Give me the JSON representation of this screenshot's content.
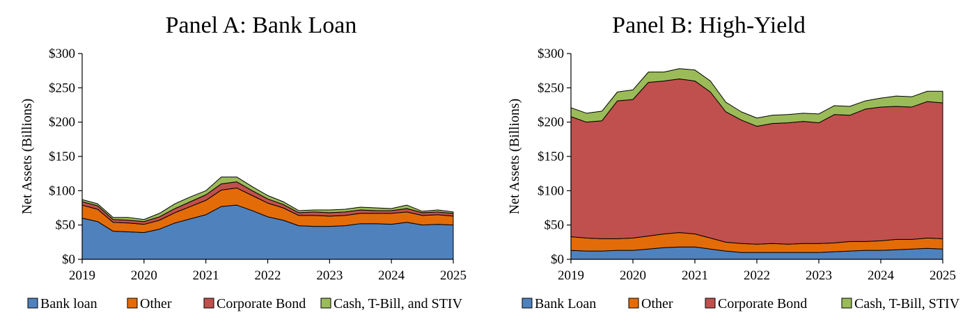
{
  "chart_data": [
    {
      "type": "area",
      "stacked": true,
      "title": "Panel A: Bank Loan",
      "xlabel": "",
      "ylabel": "Net Assets (Billions)",
      "ylim": [
        0,
        300
      ],
      "yticks": [
        "$0",
        "$50",
        "$100",
        "$150",
        "$200",
        "$250",
        "$300"
      ],
      "xlim": [
        2019,
        2025
      ],
      "xticks": [
        "2019",
        "2020",
        "2021",
        "2022",
        "2023",
        "2024",
        "2025"
      ],
      "legend_position": "bottom",
      "x": [
        2019.0,
        2019.25,
        2019.5,
        2019.75,
        2020.0,
        2020.25,
        2020.5,
        2020.75,
        2021.0,
        2021.25,
        2021.5,
        2021.75,
        2022.0,
        2022.25,
        2022.5,
        2022.75,
        2023.0,
        2023.25,
        2023.5,
        2023.75,
        2024.0,
        2024.25,
        2024.5,
        2024.75,
        2025.0
      ],
      "series": [
        {
          "name": "Bank loan",
          "color": "#4f81bd",
          "values": [
            60,
            55,
            41,
            40,
            39,
            44,
            53,
            59,
            65,
            77,
            79,
            71,
            62,
            57,
            49,
            48,
            48,
            49,
            52,
            52,
            51,
            54,
            50,
            51,
            50
          ]
        },
        {
          "name": "Other",
          "color": "#e36c09",
          "values": [
            19,
            18,
            13,
            13,
            12,
            13,
            15,
            18,
            21,
            24,
            25,
            22,
            20,
            18,
            15,
            16,
            15,
            15,
            15,
            15,
            16,
            15,
            14,
            14,
            13
          ]
        },
        {
          "name": "Corporate  Bond",
          "color": "#c0504d",
          "values": [
            5,
            5,
            4,
            4,
            4,
            5,
            6,
            7,
            8,
            9,
            9,
            7,
            6,
            5,
            4,
            5,
            5,
            5,
            5,
            4,
            4,
            5,
            4,
            4,
            4
          ]
        },
        {
          "name": "Cash, T-Bill, and STIV",
          "color": "#9bbb59",
          "values": [
            3,
            3,
            3,
            4,
            3,
            5,
            7,
            7,
            6,
            10,
            7,
            6,
            5,
            4,
            3,
            3,
            4,
            4,
            4,
            4,
            3,
            5,
            2,
            3,
            2
          ]
        }
      ]
    },
    {
      "type": "area",
      "stacked": true,
      "title": "Panel B: High-Yield",
      "xlabel": "",
      "ylabel": "Net Assets (Billions)",
      "ylim": [
        0,
        300
      ],
      "yticks": [
        "$0",
        "$50",
        "$100",
        "$150",
        "$200",
        "$250",
        "$300"
      ],
      "xlim": [
        2019,
        2025
      ],
      "xticks": [
        "2019",
        "2020",
        "2021",
        "2022",
        "2023",
        "2024",
        "2025"
      ],
      "legend_position": "bottom",
      "x": [
        2019.0,
        2019.25,
        2019.5,
        2019.75,
        2020.0,
        2020.25,
        2020.5,
        2020.75,
        2021.0,
        2021.25,
        2021.5,
        2021.75,
        2022.0,
        2022.25,
        2022.5,
        2022.75,
        2023.0,
        2023.25,
        2023.5,
        2023.75,
        2024.0,
        2024.25,
        2024.5,
        2024.75,
        2025.0
      ],
      "series": [
        {
          "name": "Bank Loan",
          "color": "#4f81bd",
          "values": [
            13,
            12,
            12,
            13,
            13,
            15,
            17,
            18,
            18,
            15,
            12,
            10,
            10,
            10,
            10,
            10,
            10,
            11,
            12,
            13,
            13,
            14,
            15,
            16,
            15
          ]
        },
        {
          "name": "Other",
          "color": "#e36c09",
          "values": [
            20,
            19,
            18,
            17,
            18,
            19,
            20,
            21,
            19,
            16,
            13,
            13,
            12,
            13,
            12,
            13,
            13,
            13,
            14,
            13,
            14,
            15,
            14,
            15,
            15
          ]
        },
        {
          "name": "Corporate Bond",
          "color": "#c0504d",
          "values": [
            175,
            169,
            172,
            201,
            202,
            224,
            223,
            224,
            223,
            213,
            190,
            180,
            172,
            175,
            177,
            178,
            176,
            187,
            184,
            193,
            195,
            194,
            193,
            199,
            198
          ]
        },
        {
          "name": "Cash, T-Bill, STIV",
          "color": "#9bbb59",
          "values": [
            13,
            13,
            14,
            13,
            14,
            15,
            13,
            15,
            16,
            16,
            14,
            12,
            12,
            12,
            12,
            12,
            13,
            13,
            13,
            12,
            13,
            15,
            15,
            15,
            17
          ]
        }
      ]
    }
  ]
}
